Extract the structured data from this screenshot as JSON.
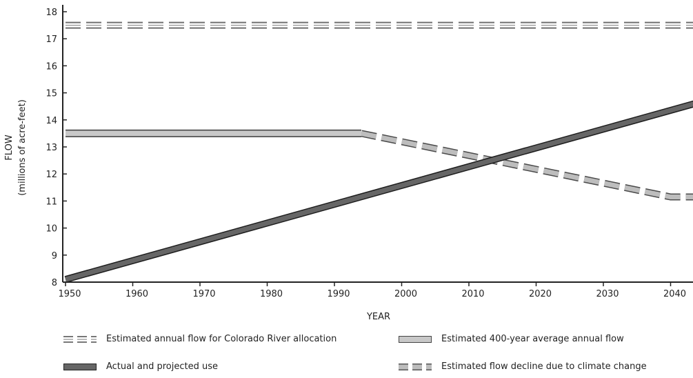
{
  "chart_data": {
    "type": "line",
    "xlabel": "YEAR",
    "ylabel": "FLOW",
    "ylabel_sub": "(millions of acre-feet)",
    "xlim": [
      1950,
      2045
    ],
    "ylim": [
      8,
      18
    ],
    "xticks": [
      1950,
      1960,
      1970,
      1980,
      1990,
      2000,
      2010,
      2020,
      2030,
      2040
    ],
    "yticks": [
      8,
      9,
      10,
      11,
      12,
      13,
      14,
      15,
      16,
      17,
      18
    ],
    "series": [
      {
        "name": "Estimated annual flow for Colorado River allocation",
        "style": "dashed-outline",
        "color": "#ffffff",
        "x": [
          1950,
          2045
        ],
        "y": [
          17.5,
          17.5
        ]
      },
      {
        "name": "Estimated 400-year average annual flow",
        "style": "solid-light",
        "color": "#c8c8c8",
        "x": [
          1950,
          1994
        ],
        "y": [
          13.5,
          13.5
        ]
      },
      {
        "name": "Actual and projected use",
        "style": "solid-dark",
        "color": "#666666",
        "x": [
          1950,
          2045
        ],
        "y": [
          8.1,
          14.7
        ]
      },
      {
        "name": "Estimated flow decline due to climate change",
        "style": "dashed-gray",
        "color": "#bdbdbd",
        "x": [
          1994,
          2040,
          2045
        ],
        "y": [
          13.5,
          11.15,
          11.15
        ]
      }
    ]
  }
}
